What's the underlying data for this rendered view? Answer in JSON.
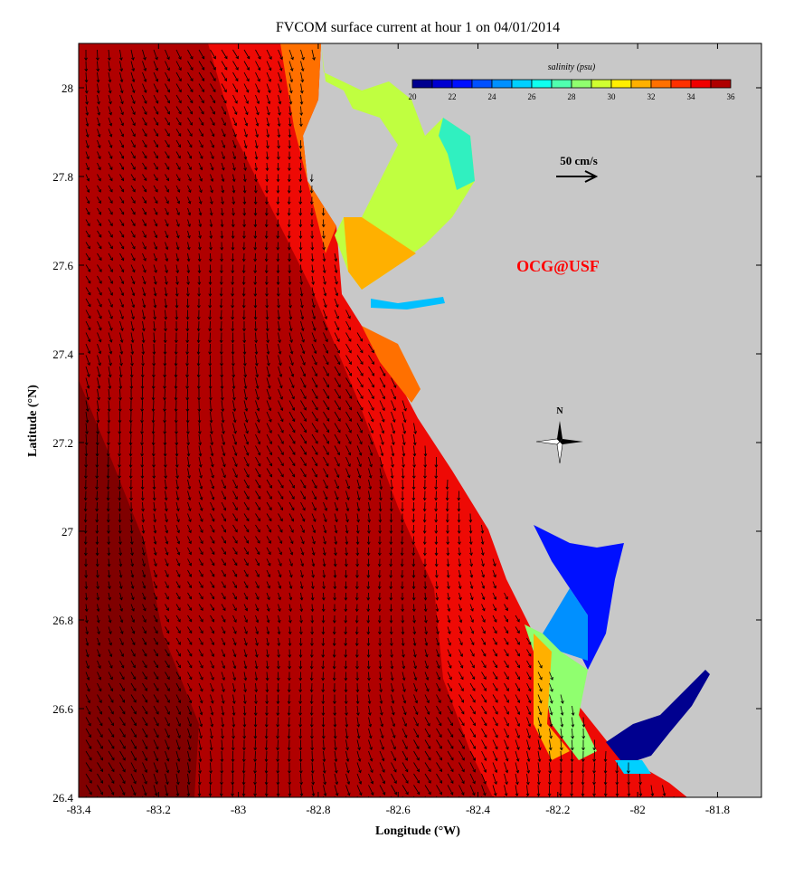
{
  "chart_data": {
    "type": "map",
    "title": "FVCOM surface current at hour 1 on 04/01/2014",
    "xlabel": "Longitude (°W)",
    "ylabel": "Latitude (°N)",
    "xlim": [
      -83.4,
      -81.69
    ],
    "ylim": [
      26.4,
      28.1
    ],
    "xticks": [
      "-83.4",
      "-83.2",
      "-83",
      "-82.8",
      "-82.6",
      "-82.4",
      "-82.2",
      "-82",
      "-81.8"
    ],
    "yticks": [
      "26.4",
      "26.6",
      "26.8",
      "27",
      "27.2",
      "27.4",
      "27.6",
      "27.8",
      "28"
    ],
    "colorbar": {
      "label": "salinity (psu)",
      "range": [
        20,
        36
      ],
      "ticks": [
        "20",
        "22",
        "24",
        "26",
        "28",
        "30",
        "32",
        "34",
        "36"
      ],
      "colors": [
        "#00008f",
        "#0000d0",
        "#0010ff",
        "#0050ff",
        "#0090ff",
        "#00d0ff",
        "#10ffef",
        "#50ffaf",
        "#90ff6f",
        "#d0ff30",
        "#ffef00",
        "#ffb000",
        "#ff7000",
        "#ff3000",
        "#f00000",
        "#af0000"
      ]
    },
    "scale_arrow_label": "50 cm/s",
    "watermark": "OCG@USF",
    "north_label": "N",
    "land_color": "#c8c8c8",
    "dominant_flow": "south-southeast"
  }
}
